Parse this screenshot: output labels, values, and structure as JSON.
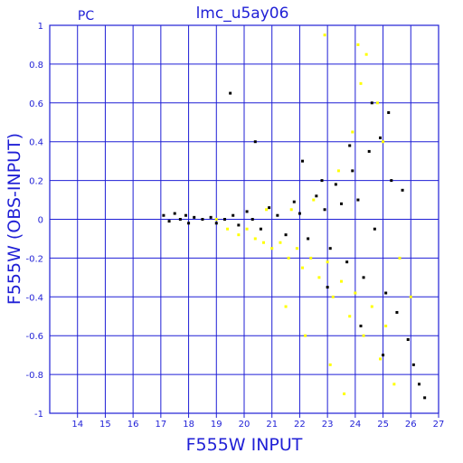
{
  "chart_data": {
    "type": "scatter",
    "title": "lmc_u5ay06",
    "subtitle": "PC",
    "xlabel": "F555W INPUT",
    "ylabel": "F555W (OBS-INPUT)",
    "xlim": [
      13,
      27
    ],
    "ylim": [
      -1,
      1
    ],
    "x_ticks": [
      14,
      15,
      16,
      17,
      18,
      19,
      20,
      21,
      22,
      23,
      24,
      25,
      26,
      27
    ],
    "y_ticks": [
      -1,
      -0.8,
      -0.6,
      -0.4,
      -0.2,
      0,
      0.2,
      0.4,
      0.6,
      0.8,
      1
    ],
    "y_tick_labels": [
      "-1",
      "-0.8",
      "-0.6",
      "-0.4",
      "-0.2",
      "0",
      "0.2",
      "0.4",
      "0.6",
      "0.8",
      "1"
    ],
    "grid": true,
    "series": [
      {
        "color": "#000000",
        "points": [
          [
            17.1,
            0.02
          ],
          [
            17.3,
            -0.01
          ],
          [
            17.5,
            0.03
          ],
          [
            17.7,
            0.0
          ],
          [
            17.9,
            0.02
          ],
          [
            18.0,
            -0.02
          ],
          [
            18.2,
            0.01
          ],
          [
            18.5,
            0.0
          ],
          [
            18.8,
            0.01
          ],
          [
            19.0,
            -0.02
          ],
          [
            19.3,
            0.0
          ],
          [
            19.6,
            0.02
          ],
          [
            19.8,
            -0.03
          ],
          [
            20.1,
            0.04
          ],
          [
            20.3,
            0.0
          ],
          [
            20.6,
            -0.05
          ],
          [
            20.9,
            0.06
          ],
          [
            21.2,
            0.02
          ],
          [
            21.5,
            -0.08
          ],
          [
            21.8,
            0.09
          ],
          [
            22.0,
            0.03
          ],
          [
            22.3,
            -0.1
          ],
          [
            22.6,
            0.12
          ],
          [
            22.9,
            0.05
          ],
          [
            23.1,
            -0.15
          ],
          [
            23.3,
            0.18
          ],
          [
            23.5,
            0.08
          ],
          [
            23.7,
            -0.22
          ],
          [
            23.9,
            0.25
          ],
          [
            24.1,
            0.1
          ],
          [
            24.3,
            -0.3
          ],
          [
            24.5,
            0.35
          ],
          [
            24.7,
            -0.05
          ],
          [
            24.9,
            0.42
          ],
          [
            25.1,
            -0.38
          ],
          [
            25.3,
            0.2
          ],
          [
            25.5,
            -0.48
          ],
          [
            25.7,
            0.15
          ],
          [
            25.9,
            -0.62
          ],
          [
            26.1,
            -0.75
          ],
          [
            26.3,
            -0.85
          ],
          [
            26.5,
            -0.92
          ],
          [
            19.5,
            0.65
          ],
          [
            20.4,
            0.4
          ],
          [
            22.1,
            0.3
          ],
          [
            23.0,
            -0.35
          ],
          [
            24.2,
            -0.55
          ],
          [
            25.0,
            -0.7
          ],
          [
            24.6,
            0.6
          ],
          [
            25.2,
            0.55
          ],
          [
            23.8,
            0.38
          ],
          [
            22.8,
            0.2
          ]
        ]
      },
      {
        "color": "#ffff00",
        "points": [
          [
            19.0,
            0.0
          ],
          [
            19.4,
            -0.05
          ],
          [
            19.8,
            -0.08
          ],
          [
            20.1,
            -0.05
          ],
          [
            20.4,
            -0.1
          ],
          [
            20.7,
            -0.12
          ],
          [
            21.0,
            -0.15
          ],
          [
            21.3,
            -0.12
          ],
          [
            21.6,
            -0.2
          ],
          [
            21.9,
            -0.15
          ],
          [
            22.1,
            -0.25
          ],
          [
            22.4,
            -0.2
          ],
          [
            22.7,
            -0.3
          ],
          [
            23.0,
            -0.22
          ],
          [
            23.2,
            -0.4
          ],
          [
            23.5,
            -0.32
          ],
          [
            23.8,
            -0.5
          ],
          [
            24.0,
            -0.38
          ],
          [
            24.3,
            -0.6
          ],
          [
            24.6,
            -0.45
          ],
          [
            24.9,
            -0.72
          ],
          [
            25.1,
            -0.55
          ],
          [
            25.4,
            -0.85
          ],
          [
            22.5,
            0.1
          ],
          [
            23.4,
            0.25
          ],
          [
            23.9,
            0.45
          ],
          [
            24.2,
            0.7
          ],
          [
            24.4,
            0.85
          ],
          [
            24.8,
            0.6
          ],
          [
            25.0,
            0.4
          ],
          [
            22.9,
            0.95
          ],
          [
            24.1,
            0.9
          ],
          [
            21.5,
            -0.45
          ],
          [
            22.2,
            -0.6
          ],
          [
            23.1,
            -0.75
          ],
          [
            23.6,
            -0.9
          ],
          [
            20.8,
            0.05
          ],
          [
            21.7,
            0.05
          ],
          [
            25.6,
            -0.2
          ],
          [
            26.0,
            -0.4
          ]
        ]
      }
    ]
  }
}
